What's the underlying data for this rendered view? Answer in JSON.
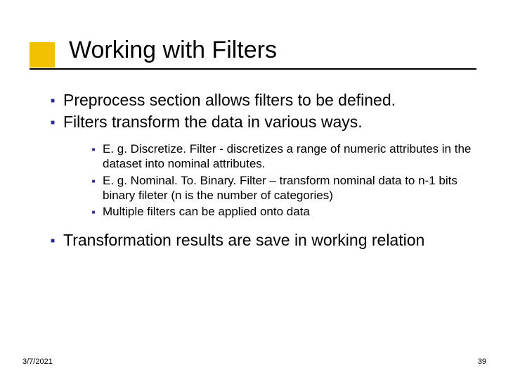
{
  "colors": {
    "accent_box": "#f2c200",
    "bullet": "#2c2c8c",
    "text": "#000000",
    "line": "#000000",
    "background": "#ffffff"
  },
  "typography": {
    "title_fontsize": 34,
    "l1_fontsize": 23,
    "l2_fontsize": 17,
    "footer_fontsize": 11,
    "font_family": "Verdana"
  },
  "title": "Working with Filters",
  "bullets": [
    "Preprocess section allows filters to be defined.",
    "Filters transform the data in various ways."
  ],
  "sub_bullets": [
    "E. g. Discretize. Filter - discretizes a range of numeric attributes in the dataset into nominal attributes.",
    "E. g. Nominal. To. Binary. Filter – transform nominal data to n-1 bits binary fileter (n is the number of categories)",
    "Multiple filters can be applied onto data"
  ],
  "bullets_after": [
    "Transformation results are save in working relation"
  ],
  "footer": {
    "date": "3/7/2021",
    "page": "39"
  }
}
